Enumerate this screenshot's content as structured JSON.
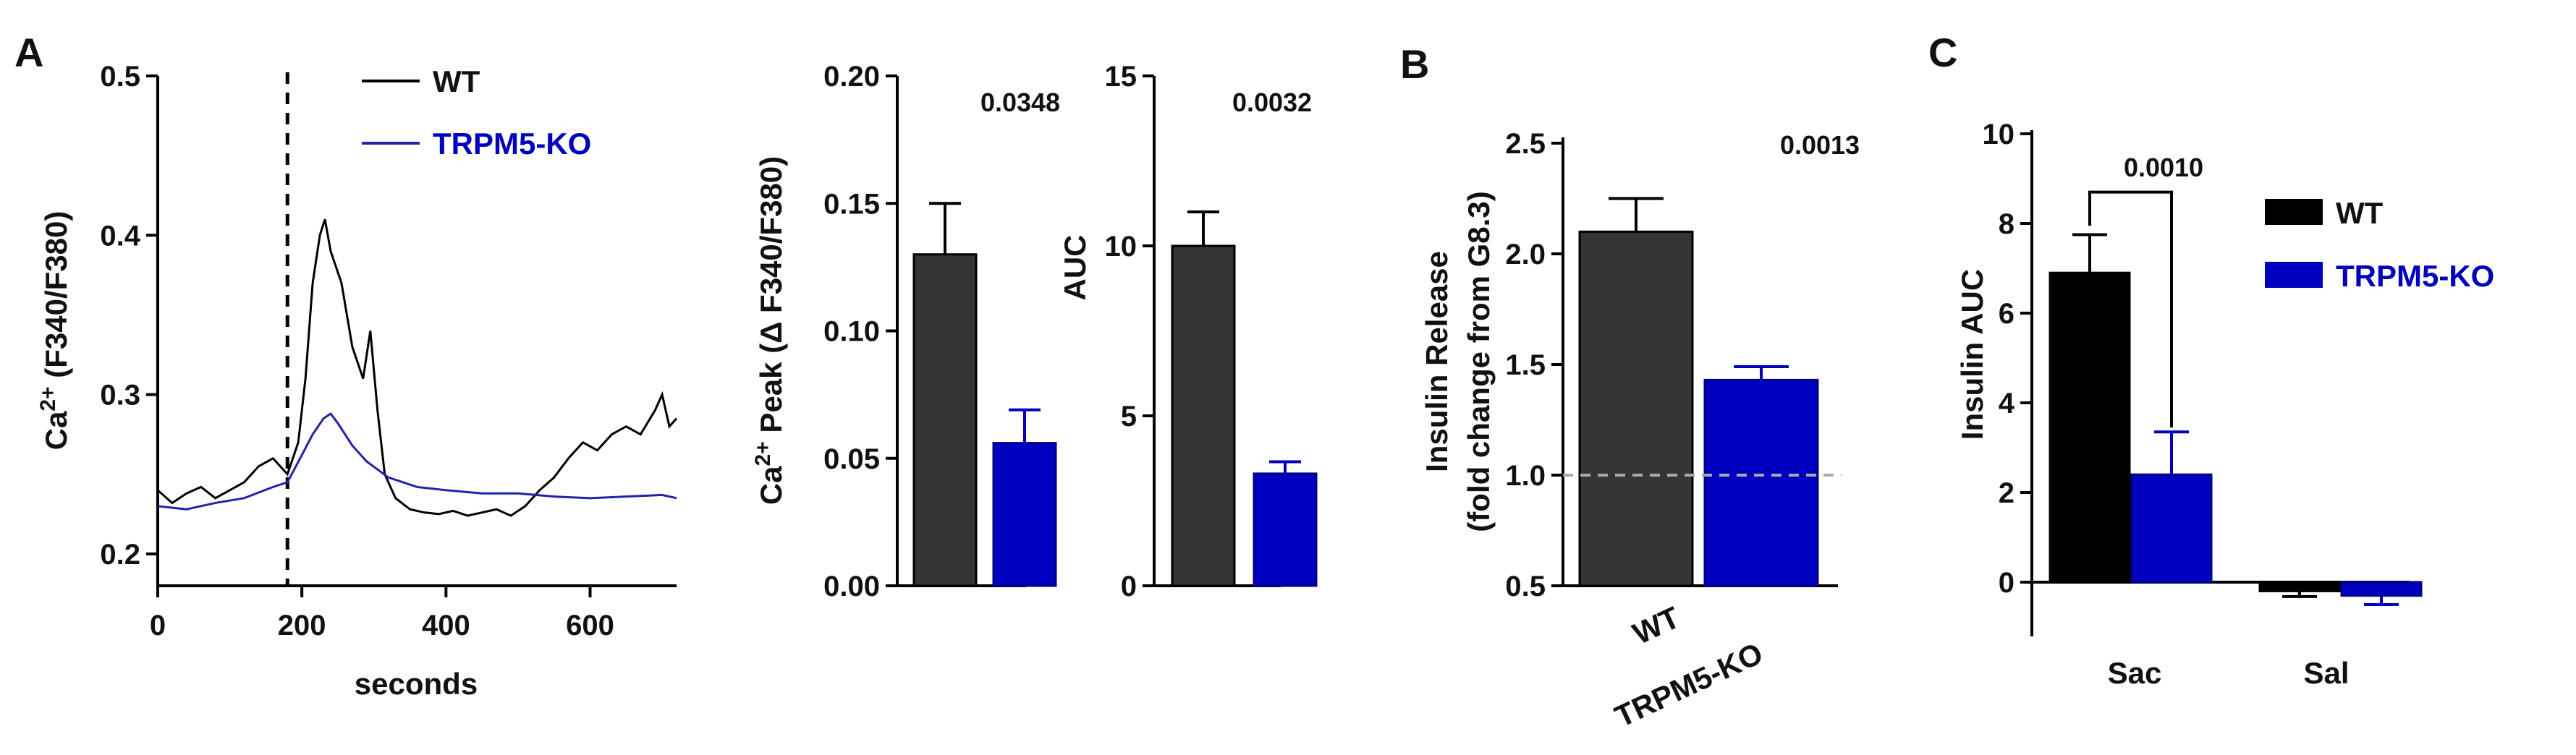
{
  "panel_letters": [
    "A",
    "B",
    "C"
  ],
  "colors": {
    "wt_dark": "#353535",
    "wt_black": "#000000",
    "ko": "#0000c0",
    "ko_line": "#2222aa",
    "baseline": "#aaaaaa"
  },
  "chart_data": [
    {
      "id": "trace",
      "type": "line",
      "panel": "A",
      "xlabel": "seconds",
      "ylabel_main": "Ca",
      "ylabel_sup": "2+",
      "ylabel_rest": " (F340/F380)",
      "xlim": [
        0,
        720
      ],
      "ylim": [
        0.18,
        0.5
      ],
      "xticks": [
        "0",
        "200",
        "400",
        "600"
      ],
      "yticks": [
        "0.2",
        "0.3",
        "0.4",
        "0.5"
      ],
      "stim_time": 180,
      "legend": [
        "WT",
        "TRPM5-KO"
      ],
      "series": [
        {
          "name": "WT",
          "x": [
            0,
            20,
            40,
            60,
            80,
            100,
            120,
            140,
            160,
            180,
            195,
            205,
            215,
            225,
            232,
            240,
            255,
            270,
            285,
            295,
            305,
            315,
            330,
            350,
            370,
            390,
            410,
            430,
            450,
            470,
            490,
            510,
            530,
            550,
            570,
            590,
            610,
            630,
            650,
            670,
            690,
            700,
            710,
            720
          ],
          "y": [
            0.24,
            0.232,
            0.238,
            0.242,
            0.235,
            0.24,
            0.245,
            0.255,
            0.26,
            0.25,
            0.27,
            0.31,
            0.37,
            0.4,
            0.41,
            0.39,
            0.37,
            0.33,
            0.31,
            0.34,
            0.29,
            0.25,
            0.235,
            0.228,
            0.226,
            0.225,
            0.227,
            0.224,
            0.226,
            0.228,
            0.224,
            0.23,
            0.24,
            0.248,
            0.26,
            0.27,
            0.265,
            0.275,
            0.28,
            0.275,
            0.29,
            0.3,
            0.28,
            0.285
          ]
        },
        {
          "name": "TRPM5-KO",
          "x": [
            0,
            40,
            80,
            120,
            160,
            180,
            200,
            215,
            230,
            240,
            250,
            270,
            290,
            320,
            360,
            400,
            450,
            500,
            550,
            600,
            650,
            700,
            720
          ],
          "y": [
            0.23,
            0.228,
            0.232,
            0.235,
            0.242,
            0.245,
            0.262,
            0.275,
            0.285,
            0.288,
            0.282,
            0.268,
            0.258,
            0.248,
            0.242,
            0.24,
            0.238,
            0.238,
            0.236,
            0.235,
            0.236,
            0.237,
            0.235
          ]
        }
      ]
    },
    {
      "id": "peak",
      "type": "bar",
      "panel": "A",
      "ylabel_main": "Ca",
      "ylabel_sup": "2+",
      "ylabel_rest": " Peak (Δ F340/F380)",
      "ylim": [
        0,
        0.2
      ],
      "yticks": [
        "0.00",
        "0.05",
        "0.10",
        "0.15",
        "0.20"
      ],
      "categories": [
        "WT",
        "TRPM5-KO"
      ],
      "values": [
        0.13,
        0.056
      ],
      "errors": [
        0.02,
        0.013
      ],
      "p_value": "0.0348"
    },
    {
      "id": "auc",
      "type": "bar",
      "panel": "A",
      "ylabel": "AUC",
      "ylim": [
        0,
        15
      ],
      "yticks": [
        "0",
        "5",
        "10",
        "15"
      ],
      "categories": [
        "WT",
        "TRPM5-KO"
      ],
      "values": [
        10.0,
        3.3
      ],
      "errors": [
        1.0,
        0.35
      ],
      "p_value": "0.0032"
    },
    {
      "id": "insulin_release",
      "type": "bar",
      "panel": "B",
      "ylabel_line1": "Insulin Release",
      "ylabel_line2": "(fold change from G8.3)",
      "ylim": [
        0.5,
        2.5
      ],
      "yticks": [
        "0.5",
        "1.0",
        "1.5",
        "2.0",
        "2.5"
      ],
      "categories": [
        "WT",
        "TRPM5-KO"
      ],
      "values": [
        2.1,
        1.43
      ],
      "errors": [
        0.15,
        0.06
      ],
      "baseline": 1.0,
      "p_value": "0.0013"
    },
    {
      "id": "insulin_auc",
      "type": "bar",
      "panel": "C",
      "ylabel": "Insulin AUC",
      "ylim": [
        -0.8,
        10
      ],
      "yticks": [
        "0",
        "2",
        "4",
        "6",
        "8",
        "10"
      ],
      "categories": [
        "Sac",
        "Sal"
      ],
      "legend": [
        "WT",
        "TRPM5-KO"
      ],
      "series": [
        {
          "name": "WT",
          "values": [
            6.9,
            -0.2
          ],
          "errors": [
            0.85,
            0.12
          ]
        },
        {
          "name": "TRPM5-KO",
          "values": [
            2.4,
            -0.3
          ],
          "errors": [
            0.95,
            0.2
          ]
        }
      ],
      "p_value": "0.0010"
    }
  ]
}
